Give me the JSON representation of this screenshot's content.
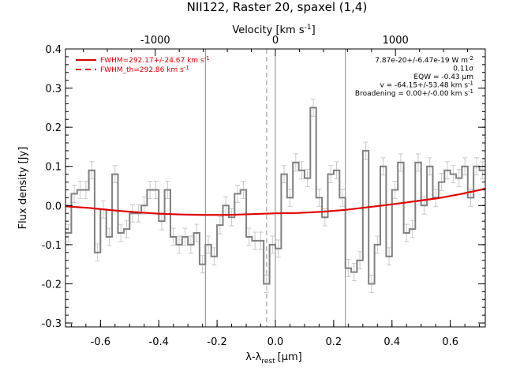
{
  "chart_data": {
    "type": "line",
    "title": "NII122, Raster 20, spaxel (1,4)",
    "xlabel": "λ-λ",
    "xlabel_sub": "rest",
    "xlabel_unit": "[μm]",
    "ylabel": "Flux density [Jy]",
    "top_axis_label": "Velocity [km s",
    "top_axis_label_sup": "-1",
    "top_axis_label_end": "]",
    "xlim": [
      -0.72,
      0.72
    ],
    "ylim": [
      -0.31,
      0.4
    ],
    "x_ticks": [
      -0.6,
      -0.4,
      -0.2,
      0.0,
      0.2,
      0.4,
      0.6
    ],
    "x_tick_labels": [
      "-0.6",
      "-0.4",
      "-0.2",
      "0.0",
      "0.2",
      "0.4",
      "0.6"
    ],
    "y_ticks": [
      -0.3,
      -0.2,
      -0.1,
      0.0,
      0.1,
      0.2,
      0.3,
      0.4
    ],
    "y_tick_labels": [
      "-0.3",
      "-0.2",
      "-0.1",
      "0.0",
      "0.1",
      "0.2",
      "0.3",
      "0.4"
    ],
    "top_ticks_velocity": [
      -1000,
      0,
      1000
    ],
    "top_tick_labels": [
      "-1000",
      "0",
      "1000"
    ],
    "top_ticks_x": [
      -0.412,
      0.0,
      0.412
    ],
    "vertical_lines": [
      {
        "x": -0.24,
        "style": "solid",
        "color": "#888888"
      },
      {
        "x": -0.03,
        "style": "dashed",
        "color": "#888888"
      },
      {
        "x": 0.0,
        "style": "solid",
        "color": "#888888"
      },
      {
        "x": 0.24,
        "style": "solid",
        "color": "#888888"
      }
    ],
    "spectrum": {
      "color": "#808080",
      "error_color": "#c8c8c8",
      "x": [
        -0.71,
        -0.69,
        -0.67,
        -0.65,
        -0.63,
        -0.61,
        -0.59,
        -0.57,
        -0.55,
        -0.53,
        -0.51,
        -0.49,
        -0.47,
        -0.45,
        -0.43,
        -0.41,
        -0.39,
        -0.37,
        -0.35,
        -0.33,
        -0.31,
        -0.29,
        -0.27,
        -0.25,
        -0.23,
        -0.21,
        -0.19,
        -0.17,
        -0.15,
        -0.13,
        -0.11,
        -0.09,
        -0.07,
        -0.05,
        -0.03,
        -0.01,
        0.01,
        0.03,
        0.05,
        0.07,
        0.09,
        0.11,
        0.13,
        0.15,
        0.17,
        0.19,
        0.21,
        0.23,
        0.25,
        0.27,
        0.29,
        0.31,
        0.33,
        0.35,
        0.37,
        0.39,
        0.41,
        0.43,
        0.45,
        0.47,
        0.49,
        0.51,
        0.53,
        0.55,
        0.57,
        0.59,
        0.61,
        0.63,
        0.65,
        0.67,
        0.69,
        0.71
      ],
      "y": [
        -0.07,
        0.03,
        0.04,
        0.04,
        0.09,
        -0.12,
        -0.01,
        -0.08,
        0.08,
        -0.07,
        -0.06,
        -0.02,
        -0.02,
        0.0,
        0.04,
        0.04,
        -0.04,
        0.04,
        -0.08,
        -0.1,
        -0.08,
        -0.1,
        -0.07,
        -0.15,
        -0.1,
        -0.13,
        -0.05,
        0.0,
        -0.03,
        0.03,
        0.04,
        -0.08,
        -0.09,
        -0.09,
        -0.2,
        -0.1,
        -0.11,
        0.08,
        0.02,
        0.11,
        0.09,
        0.07,
        0.25,
        0.02,
        -0.03,
        0.08,
        0.09,
        0.02,
        -0.16,
        -0.17,
        -0.14,
        0.14,
        -0.2,
        -0.1,
        0.1,
        -0.13,
        0.04,
        0.11,
        -0.07,
        -0.06,
        0.11,
        0.0,
        0.1,
        0.02,
        0.06,
        0.09,
        0.08,
        0.07,
        0.1,
        0.02,
        0.1,
        0.09
      ],
      "err": 0.022
    },
    "fit": {
      "color": "#e00000",
      "x": [
        -0.72,
        -0.64,
        -0.56,
        -0.48,
        -0.4,
        -0.32,
        -0.24,
        -0.16,
        -0.08,
        0.0,
        0.08,
        0.16,
        0.24,
        0.32,
        0.4,
        0.48,
        0.56,
        0.64,
        0.72
      ],
      "y": [
        -0.002,
        -0.006,
        -0.012,
        -0.017,
        -0.021,
        -0.023,
        -0.024,
        -0.024,
        -0.022,
        -0.02,
        -0.019,
        -0.016,
        -0.011,
        -0.004,
        0.003,
        0.011,
        0.019,
        0.03,
        0.043
      ]
    },
    "legend": [
      {
        "label": "FWHM=292.17+/-24.67 km s",
        "sup": "-1",
        "style": "solid",
        "color": "#e00000"
      },
      {
        "label": "FWHM_th=292.86 km s",
        "sup": "-1",
        "style": "dashed",
        "color": "#e00000"
      }
    ],
    "legend_position": "top-left",
    "annotations": [
      {
        "text": "7.87e-20+/-6.47e-19 W m",
        "sup": "-2"
      },
      {
        "text": "0.11σ",
        "sup": ""
      },
      {
        "text": "EQW = -0.43 μm",
        "sup": ""
      },
      {
        "text": "v = -64.15+/-53.48 km s",
        "sup": "-1"
      },
      {
        "text": "Broadening = 0.00+/-0.00 km s",
        "sup": "-1"
      }
    ],
    "annotations_position": "top-right",
    "grid": false
  }
}
